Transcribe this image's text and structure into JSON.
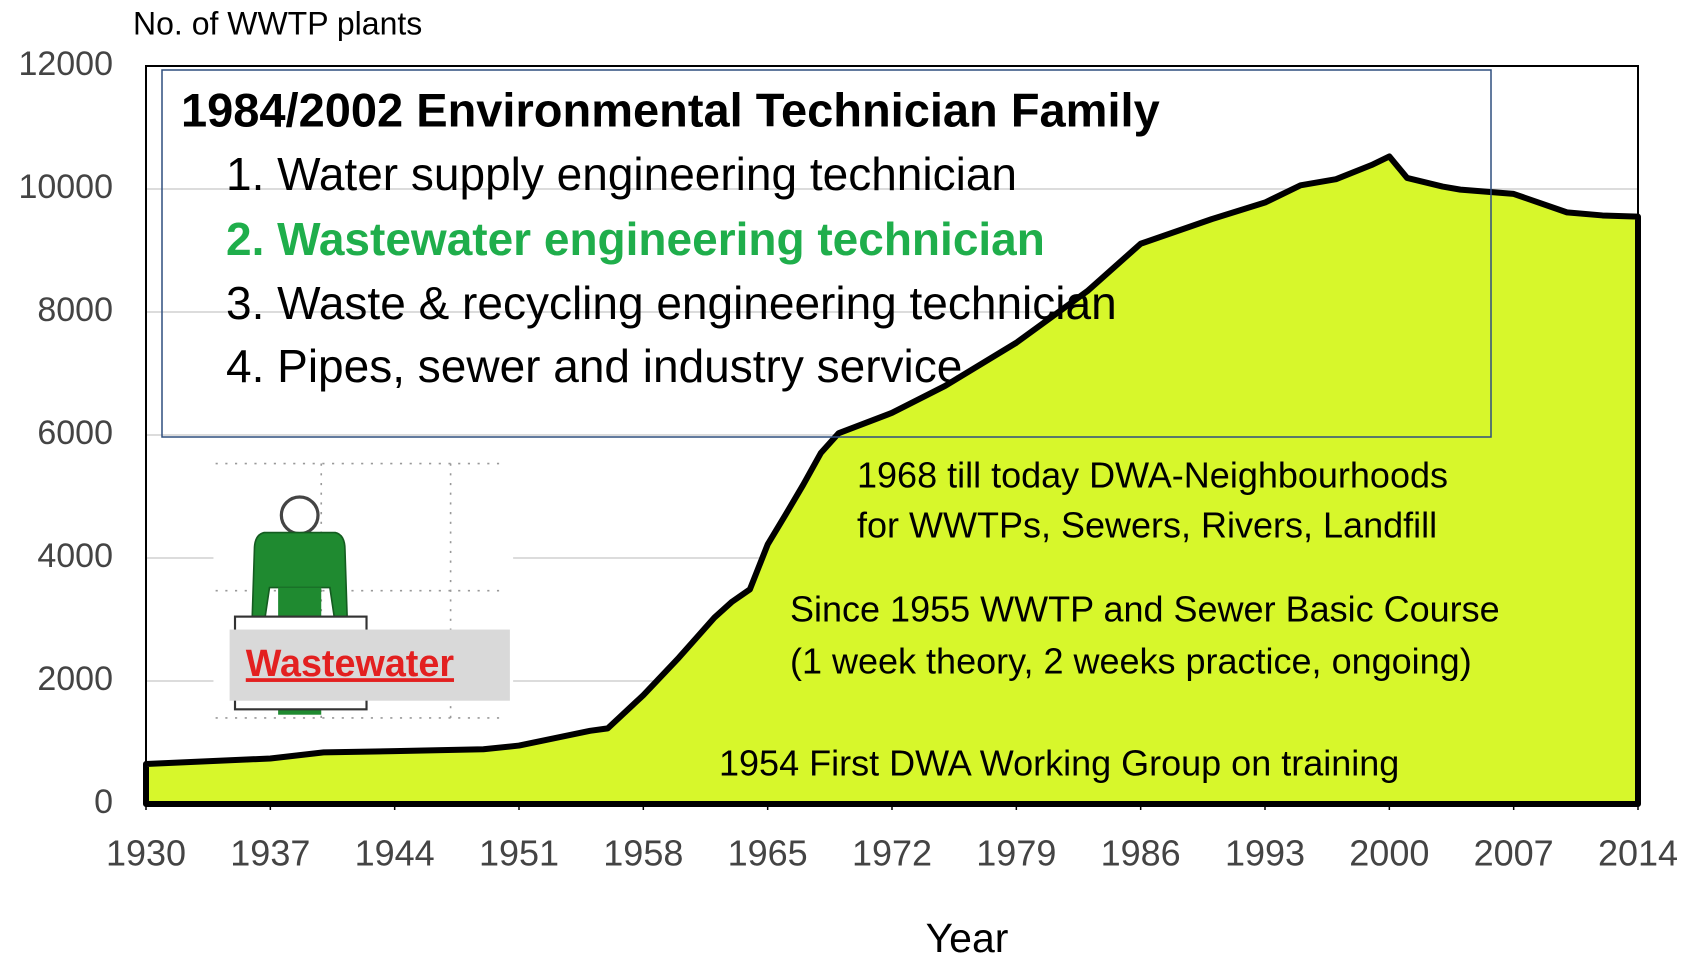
{
  "chart_data": {
    "type": "area",
    "y_label": "No. of WWTP plants",
    "x_label": "Year",
    "x": [
      1930,
      1937,
      1940,
      1944,
      1949,
      1951,
      1953,
      1955,
      1956,
      1958,
      1960,
      1962,
      1963,
      1964,
      1965,
      1966,
      1967,
      1968,
      1969,
      1972,
      1975,
      1979,
      1983,
      1986,
      1990,
      1993,
      1995,
      1997,
      1999,
      2000,
      2001,
      2003,
      2004,
      2007,
      2010,
      2012,
      2014
    ],
    "values": [
      650,
      740,
      840,
      860,
      890,
      950,
      1070,
      1190,
      1230,
      1770,
      2380,
      3030,
      3290,
      3490,
      4220,
      4700,
      5190,
      5710,
      6030,
      6360,
      6800,
      7500,
      8340,
      9110,
      9510,
      9780,
      10060,
      10160,
      10390,
      10530,
      10180,
      10040,
      9990,
      9920,
      9620,
      9570,
      9550
    ],
    "color": "#d7f72b",
    "line_color": "#000000",
    "xlim": [
      1930,
      2014
    ],
    "xticks": [
      1930,
      1937,
      1944,
      1951,
      1958,
      1965,
      1972,
      1979,
      1986,
      1993,
      2000,
      2007,
      2014
    ],
    "ylim": [
      0,
      12000
    ],
    "yticks": [
      0,
      2000,
      4000,
      6000,
      8000,
      10000,
      12000
    ],
    "grid": true,
    "box_title": "1984/2002 Environmental Technician Family",
    "box_items": [
      {
        "text": "1. Water supply engineering technician",
        "color": "#000000",
        "bold": false
      },
      {
        "text": "2. Wastewater engineering technician",
        "color": "#1fae4b",
        "bold": true
      },
      {
        "text": "3. Waste & recycling engineering technician",
        "color": "#000000",
        "bold": false
      },
      {
        "text": "4. Pipes, sewer and industry service",
        "color": "#000000",
        "bold": false
      }
    ],
    "notes": [
      "1968 till today DWA-Neighbourhoods",
      "for WWTPs, Sewers, Rivers, Landfill",
      "Since 1955 WWTP and Sewer Basic Course",
      "(1 week  theory,  2 weeks practice, ongoing)",
      "1954 First DWA Working Group on training"
    ],
    "icon_label": "Wastewater"
  }
}
